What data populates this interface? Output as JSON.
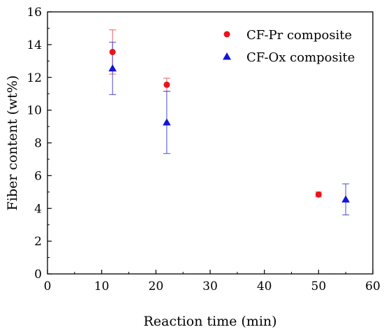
{
  "chart_data": {
    "type": "scatter",
    "xlabel": "Reaction time (min)",
    "ylabel": "Fiber content (wt%)",
    "xlim": [
      0,
      60
    ],
    "ylim": [
      0,
      16
    ],
    "x_ticks": [
      0,
      10,
      20,
      30,
      40,
      50,
      60
    ],
    "y_ticks": [
      0,
      2,
      4,
      6,
      8,
      10,
      12,
      14,
      16
    ],
    "grid": false,
    "legend_position": "top-right",
    "series": [
      {
        "name": "CF-Pr composite",
        "marker": "circle",
        "color": "#e8141c",
        "points": [
          {
            "x": 12,
            "y": 13.55,
            "err": 1.35
          },
          {
            "x": 22,
            "y": 11.55,
            "err": 0.4
          },
          {
            "x": 50,
            "y": 4.85,
            "err": 0.15
          }
        ]
      },
      {
        "name": "CF-Ox composite",
        "marker": "triangle",
        "color": "#1414d4",
        "points": [
          {
            "x": 12,
            "y": 12.55,
            "err": 1.6
          },
          {
            "x": 22,
            "y": 9.25,
            "err": 1.9
          },
          {
            "x": 55,
            "y": 4.55,
            "err": 0.95
          }
        ]
      }
    ]
  }
}
